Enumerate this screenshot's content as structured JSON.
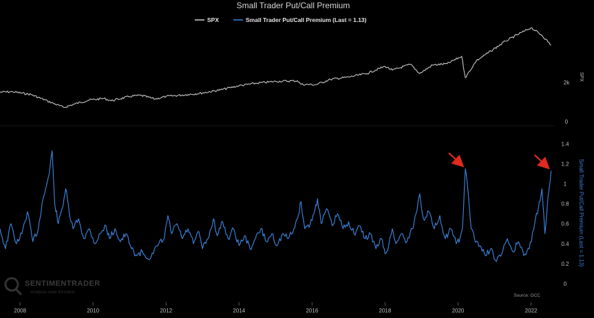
{
  "chart_data": {
    "type": "line",
    "title": "Small Trader Put/Call Premium",
    "legend": {
      "placement": "top-center",
      "entries": [
        {
          "name": "SPX",
          "color": "#c8c8c8"
        },
        {
          "name": "Small Trader Put/Call Premium (Last = 1.13)",
          "color": "#3a7fd5"
        }
      ]
    },
    "x_ticks": [
      "2008",
      "2010",
      "2012",
      "2014",
      "2016",
      "2018",
      "2020",
      "2022"
    ],
    "x_range": [
      2007.45,
      2022.65
    ],
    "spx_panel": {
      "axis_title": "SPX",
      "ticks": [
        "2k",
        "0"
      ],
      "tick_values": [
        2000,
        0
      ],
      "ylim": [
        0,
        4800
      ],
      "color": "#c8c8c8",
      "points": [
        [
          2007.45,
          1500
        ],
        [
          2007.8,
          1520
        ],
        [
          2008.3,
          1380
        ],
        [
          2008.75,
          1050
        ],
        [
          2009.2,
          720
        ],
        [
          2009.5,
          900
        ],
        [
          2009.9,
          1100
        ],
        [
          2010.3,
          1180
        ],
        [
          2010.5,
          1060
        ],
        [
          2011.0,
          1280
        ],
        [
          2011.3,
          1340
        ],
        [
          2011.7,
          1150
        ],
        [
          2012.0,
          1280
        ],
        [
          2012.6,
          1380
        ],
        [
          2013.0,
          1460
        ],
        [
          2013.5,
          1620
        ],
        [
          2014.0,
          1830
        ],
        [
          2014.5,
          1960
        ],
        [
          2015.0,
          2050
        ],
        [
          2015.6,
          2080
        ],
        [
          2015.7,
          1900
        ],
        [
          2016.1,
          1880
        ],
        [
          2016.5,
          2150
        ],
        [
          2017.0,
          2270
        ],
        [
          2017.5,
          2450
        ],
        [
          2018.0,
          2820
        ],
        [
          2018.2,
          2620
        ],
        [
          2018.7,
          2920
        ],
        [
          2018.95,
          2450
        ],
        [
          2019.3,
          2880
        ],
        [
          2019.7,
          2950
        ],
        [
          2020.1,
          3330
        ],
        [
          2020.2,
          2240
        ],
        [
          2020.5,
          3100
        ],
        [
          2020.9,
          3600
        ],
        [
          2021.3,
          4100
        ],
        [
          2021.8,
          4600
        ],
        [
          2022.0,
          4790
        ],
        [
          2022.3,
          4400
        ],
        [
          2022.55,
          3900
        ]
      ]
    },
    "premium_panel": {
      "series_name": "Small Trader Put/Call Premium",
      "axis_title": "Small Trader Put/Call Premium (Last = 1.13)",
      "last_value": 1.13,
      "ticks": [
        "1.4",
        "1.2",
        "1",
        "0.8",
        "0.6",
        "0.4",
        "0.2",
        "0"
      ],
      "tick_values": [
        1.4,
        1.2,
        1.0,
        0.8,
        0.6,
        0.4,
        0.2,
        0
      ],
      "ylim": [
        0,
        1.45
      ],
      "color": "#3a7fd5",
      "points": [
        [
          2007.45,
          0.55
        ],
        [
          2007.6,
          0.35
        ],
        [
          2007.75,
          0.6
        ],
        [
          2007.9,
          0.4
        ],
        [
          2008.05,
          0.5
        ],
        [
          2008.2,
          0.72
        ],
        [
          2008.35,
          0.42
        ],
        [
          2008.5,
          0.55
        ],
        [
          2008.6,
          0.8
        ],
        [
          2008.7,
          0.95
        ],
        [
          2008.8,
          1.1
        ],
        [
          2008.88,
          1.33
        ],
        [
          2008.95,
          0.8
        ],
        [
          2009.05,
          0.6
        ],
        [
          2009.15,
          0.75
        ],
        [
          2009.25,
          0.95
        ],
        [
          2009.35,
          0.7
        ],
        [
          2009.45,
          0.55
        ],
        [
          2009.6,
          0.65
        ],
        [
          2009.75,
          0.45
        ],
        [
          2009.9,
          0.55
        ],
        [
          2010.05,
          0.4
        ],
        [
          2010.2,
          0.5
        ],
        [
          2010.35,
          0.58
        ],
        [
          2010.45,
          0.45
        ],
        [
          2010.6,
          0.55
        ],
        [
          2010.75,
          0.42
        ],
        [
          2010.9,
          0.5
        ],
        [
          2011.05,
          0.35
        ],
        [
          2011.2,
          0.28
        ],
        [
          2011.35,
          0.32
        ],
        [
          2011.5,
          0.25
        ],
        [
          2011.65,
          0.3
        ],
        [
          2011.8,
          0.4
        ],
        [
          2011.95,
          0.45
        ],
        [
          2012.05,
          0.68
        ],
        [
          2012.15,
          0.5
        ],
        [
          2012.3,
          0.6
        ],
        [
          2012.45,
          0.45
        ],
        [
          2012.6,
          0.55
        ],
        [
          2012.75,
          0.4
        ],
        [
          2012.9,
          0.52
        ],
        [
          2013.0,
          0.35
        ],
        [
          2013.15,
          0.45
        ],
        [
          2013.3,
          0.65
        ],
        [
          2013.4,
          0.48
        ],
        [
          2013.55,
          0.62
        ],
        [
          2013.7,
          0.45
        ],
        [
          2013.85,
          0.55
        ],
        [
          2014.0,
          0.38
        ],
        [
          2014.15,
          0.48
        ],
        [
          2014.3,
          0.35
        ],
        [
          2014.45,
          0.45
        ],
        [
          2014.6,
          0.55
        ],
        [
          2014.75,
          0.42
        ],
        [
          2014.9,
          0.5
        ],
        [
          2015.05,
          0.38
        ],
        [
          2015.2,
          0.5
        ],
        [
          2015.35,
          0.45
        ],
        [
          2015.5,
          0.55
        ],
        [
          2015.6,
          0.65
        ],
        [
          2015.7,
          0.82
        ],
        [
          2015.8,
          0.55
        ],
        [
          2015.95,
          0.6
        ],
        [
          2016.05,
          0.7
        ],
        [
          2016.15,
          0.85
        ],
        [
          2016.25,
          0.6
        ],
        [
          2016.4,
          0.75
        ],
        [
          2016.55,
          0.58
        ],
        [
          2016.7,
          0.7
        ],
        [
          2016.85,
          0.55
        ],
        [
          2017.0,
          0.62
        ],
        [
          2017.15,
          0.5
        ],
        [
          2017.3,
          0.58
        ],
        [
          2017.45,
          0.45
        ],
        [
          2017.6,
          0.5
        ],
        [
          2017.75,
          0.35
        ],
        [
          2017.9,
          0.45
        ],
        [
          2018.0,
          0.3
        ],
        [
          2018.1,
          0.38
        ],
        [
          2018.2,
          0.55
        ],
        [
          2018.3,
          0.4
        ],
        [
          2018.45,
          0.5
        ],
        [
          2018.6,
          0.42
        ],
        [
          2018.75,
          0.55
        ],
        [
          2018.85,
          0.7
        ],
        [
          2018.95,
          0.9
        ],
        [
          2019.05,
          0.65
        ],
        [
          2019.2,
          0.72
        ],
        [
          2019.35,
          0.55
        ],
        [
          2019.5,
          0.68
        ],
        [
          2019.65,
          0.45
        ],
        [
          2019.8,
          0.55
        ],
        [
          2019.95,
          0.4
        ],
        [
          2020.05,
          0.45
        ],
        [
          2020.12,
          0.55
        ],
        [
          2020.2,
          1.15
        ],
        [
          2020.28,
          0.9
        ],
        [
          2020.36,
          0.55
        ],
        [
          2020.45,
          0.45
        ],
        [
          2020.6,
          0.38
        ],
        [
          2020.75,
          0.28
        ],
        [
          2020.9,
          0.35
        ],
        [
          2021.05,
          0.22
        ],
        [
          2021.2,
          0.3
        ],
        [
          2021.35,
          0.45
        ],
        [
          2021.5,
          0.32
        ],
        [
          2021.65,
          0.42
        ],
        [
          2021.8,
          0.28
        ],
        [
          2021.95,
          0.35
        ],
        [
          2022.1,
          0.6
        ],
        [
          2022.2,
          0.75
        ],
        [
          2022.3,
          0.95
        ],
        [
          2022.38,
          0.5
        ],
        [
          2022.46,
          0.85
        ],
        [
          2022.55,
          1.13
        ]
      ]
    },
    "annotations": [
      {
        "type": "arrow",
        "color": "#e02a1f",
        "x": 2020.2,
        "y": 1.15
      },
      {
        "type": "arrow",
        "color": "#e02a1f",
        "x": 2022.55,
        "y": 1.13
      }
    ],
    "source": "Source: OCC",
    "watermark": {
      "name": "SENTIMENTRADER",
      "tagline": "Analysis over Emotion"
    }
  }
}
